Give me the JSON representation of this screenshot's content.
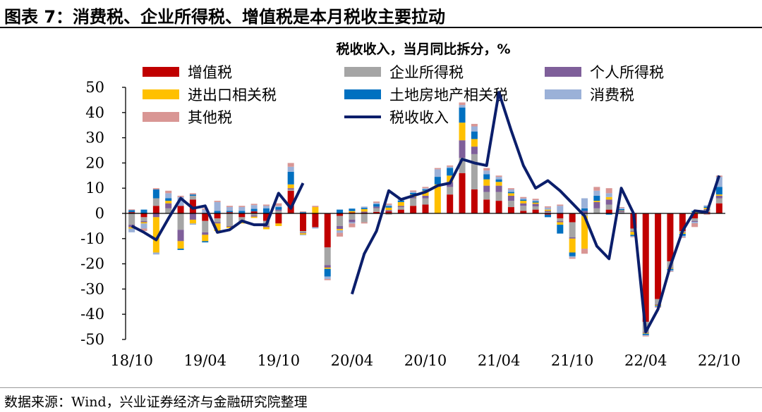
{
  "header": {
    "title": "图表 7：消费税、企业所得税、增值税是本月税收主要拉动"
  },
  "footer": {
    "source": "数据来源：Wind，兴业证券经济与金融研究院整理"
  },
  "chart_data": {
    "type": "bar",
    "stacked": true,
    "title": "税收收入，当月同比拆分，%",
    "xlabel": "",
    "ylabel": "",
    "ylim": [
      -50,
      50
    ],
    "yticks": [
      -50,
      -40,
      -30,
      -20,
      -10,
      0,
      10,
      20,
      30,
      40,
      50
    ],
    "x_tick_labels": [
      {
        "index": 0,
        "label": "18/10"
      },
      {
        "index": 6,
        "label": "19/04"
      },
      {
        "index": 12,
        "label": "19/10"
      },
      {
        "index": 18,
        "label": "20/04"
      },
      {
        "index": 24,
        "label": "20/10"
      },
      {
        "index": 30,
        "label": "21/04"
      },
      {
        "index": 36,
        "label": "21/10"
      },
      {
        "index": 42,
        "label": "22/04"
      },
      {
        "index": 48,
        "label": "22/10"
      }
    ],
    "categories": [
      "18/10",
      "18/11",
      "18/12",
      "19/01",
      "19/02",
      "19/03",
      "19/04",
      "19/05",
      "19/06",
      "19/07",
      "19/08",
      "19/09",
      "19/10",
      "19/11",
      "19/12",
      "20/01",
      "20/02",
      "20/03",
      "20/04",
      "20/05",
      "20/06",
      "20/07",
      "20/08",
      "20/09",
      "20/10",
      "20/11",
      "20/12",
      "21/01",
      "21/02",
      "21/03",
      "21/04",
      "21/05",
      "21/06",
      "21/07",
      "21/08",
      "21/09",
      "21/10",
      "21/11",
      "21/12",
      "22/01",
      "22/02",
      "22/03",
      "22/04",
      "22/05",
      "22/06",
      "22/07",
      "22/08",
      "22/09",
      "22/10"
    ],
    "series": [
      {
        "name": "增值税",
        "color": "#c00000",
        "values": [
          0.5,
          -1.5,
          3,
          0,
          3,
          5.5,
          -3,
          -2,
          0.5,
          -1.5,
          0.8,
          -3,
          -4,
          9,
          -7,
          -5.5,
          -13.5,
          -1,
          0.4,
          0.3,
          0.6,
          0.8,
          1.5,
          3,
          3.5,
          0,
          7.5,
          16,
          9.5,
          5.5,
          5,
          2.5,
          1,
          1.5,
          -0.5,
          -2,
          -3.5,
          0,
          0,
          1.5,
          0,
          -6,
          -43,
          -34,
          -19,
          -7,
          -2,
          0.5,
          4
        ]
      },
      {
        "name": "企业所得税",
        "color": "#a5a5a5",
        "values": [
          -4.5,
          -1.5,
          3,
          2,
          -6.5,
          1.5,
          -4.5,
          -1.5,
          -5,
          -1.5,
          -0.8,
          -2,
          1,
          0.5,
          -0.6,
          0,
          -7,
          -4,
          -2.5,
          -3.5,
          1.5,
          -0.5,
          1,
          3,
          2.5,
          0,
          3,
          6,
          14,
          3,
          3.5,
          2.5,
          2,
          1.3,
          0.5,
          -1,
          -6,
          -1,
          2,
          2,
          0.5,
          -1,
          -4,
          -2,
          -2.5,
          -0.3,
          -1,
          0.8,
          2
        ]
      },
      {
        "name": "个人所得税",
        "color": "#7f5f9a",
        "values": [
          -1,
          -0.5,
          -1.5,
          2,
          -4.5,
          -2.5,
          -1,
          -0.5,
          -0.3,
          -0.5,
          -0.5,
          -0.5,
          0.5,
          0.5,
          -0.3,
          0,
          -1,
          -1.2,
          -1,
          0.4,
          0.6,
          0.5,
          0.5,
          0.5,
          1,
          0,
          2,
          7,
          3,
          2.5,
          2.5,
          2,
          1,
          1,
          0.5,
          -0.5,
          -0.5,
          1,
          2.5,
          2,
          0.5,
          -0.3,
          -0.4,
          -0.3,
          -0.2,
          -0.3,
          -0.4,
          0.4,
          1
        ]
      },
      {
        "name": "进出口相关税",
        "color": "#ffc000",
        "values": [
          -0.5,
          -0.5,
          -14,
          1,
          -3,
          -1.5,
          -2.5,
          -3,
          -0.5,
          -0.5,
          -0.5,
          -0.8,
          -1,
          1.5,
          -0.5,
          2.5,
          -0.5,
          -0.5,
          0.5,
          1,
          0,
          1,
          1.5,
          1,
          2,
          11.5,
          2.5,
          7,
          3,
          2.5,
          1.5,
          1,
          1,
          0.5,
          0.5,
          -1,
          -5.5,
          -13,
          0.5,
          1,
          0.2,
          -1.2,
          -0.3,
          -0.3,
          -0.3,
          -0.5,
          0.5,
          0.5,
          0.5
        ]
      },
      {
        "name": "土地房地产相关税",
        "color": "#0070c0",
        "values": [
          0.8,
          1.5,
          3.5,
          1,
          -0.5,
          0.5,
          -0.5,
          1,
          0.5,
          1,
          1,
          2,
          1,
          5,
          0.5,
          0,
          -3,
          1.5,
          1,
          0.5,
          1,
          0.6,
          0.6,
          0.6,
          0.5,
          3,
          3,
          6,
          3,
          2,
          1,
          0.5,
          0.5,
          0.5,
          -1,
          -3.5,
          -1.5,
          1,
          2,
          -0.5,
          0.5,
          -0.5,
          -0.5,
          -0.3,
          -0.5,
          -0.8,
          0.5,
          0.5,
          3
        ]
      },
      {
        "name": "消费税",
        "color": "#9bb1d8",
        "values": [
          -1.5,
          -2,
          -0.8,
          2,
          3.5,
          -0.5,
          1.5,
          3.5,
          1.5,
          1.5,
          1.5,
          1,
          0.5,
          2,
          -0.3,
          -0.5,
          -1,
          -1,
          -0.5,
          0.5,
          0.5,
          0.5,
          0.5,
          0.5,
          0.5,
          3,
          0.5,
          1,
          2,
          1.5,
          1,
          1,
          0.5,
          0.5,
          0.8,
          3,
          -0.5,
          4,
          2,
          1.5,
          0.5,
          -0.3,
          -0.3,
          -0.2,
          -0.5,
          -0.5,
          -0.5,
          0.5,
          4
        ]
      },
      {
        "name": "其他税",
        "color": "#d99694",
        "values": [
          0.3,
          -1,
          0.5,
          1,
          0.5,
          0.5,
          0.5,
          0.5,
          0.5,
          0.5,
          0.5,
          0.5,
          1,
          1.5,
          0.3,
          0.5,
          -0.5,
          -1.5,
          -1.5,
          -0.5,
          0.5,
          0.5,
          0.5,
          0.5,
          0.5,
          0.5,
          0.5,
          1,
          1,
          1,
          0.5,
          0.5,
          0.5,
          0.5,
          0.5,
          0.5,
          -0.5,
          -2,
          1.5,
          2,
          0.3,
          -0.2,
          -0.3,
          -0.3,
          -0.2,
          -0.3,
          -1.5,
          -0.5,
          0.5
        ]
      }
    ],
    "line_series": {
      "name": "税收收入",
      "color": "#0b1e6b",
      "values": [
        -5,
        -7.5,
        -10.5,
        -2,
        6,
        2,
        3,
        -7.5,
        -6.5,
        -3,
        -4.5,
        -4.5,
        8,
        2,
        12,
        null,
        null,
        null,
        -32,
        -16,
        -7,
        9,
        5.5,
        7,
        8.5,
        11,
        12,
        21.5,
        20,
        19,
        48,
        33,
        19,
        10,
        13,
        9,
        4,
        -1,
        -13,
        -18,
        10,
        0,
        -47,
        -38,
        -21,
        -7,
        1,
        0.5,
        15
      ]
    },
    "legend": [
      {
        "label": "增值税",
        "kind": "bar",
        "color": "#c00000"
      },
      {
        "label": "企业所得税",
        "kind": "bar",
        "color": "#a5a5a5"
      },
      {
        "label": "个人所得税",
        "kind": "bar",
        "color": "#7f5f9a"
      },
      {
        "label": "进出口相关税",
        "kind": "bar",
        "color": "#ffc000"
      },
      {
        "label": "土地房地产相关税",
        "kind": "bar",
        "color": "#0070c0"
      },
      {
        "label": "消费税",
        "kind": "bar",
        "color": "#9bb1d8"
      },
      {
        "label": "其他税",
        "kind": "bar",
        "color": "#d99694"
      },
      {
        "label": "税收收入",
        "kind": "line",
        "color": "#0b1e6b"
      }
    ],
    "legend_position": "top"
  }
}
